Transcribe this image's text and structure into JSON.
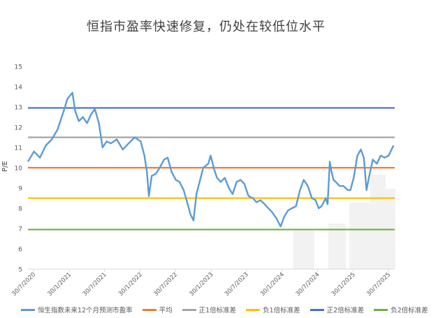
{
  "colors": {
    "pe": "#5b9bd5",
    "avg": "#ed7d31",
    "plus1": "#a5a5a5",
    "minus1": "#ffc000",
    "plus2": "#4472c4",
    "minus2": "#70ad47"
  },
  "chart_data": {
    "type": "line",
    "title": "恒指市盈率快速修复，仍处在较低位水平",
    "xlabel": "",
    "ylabel": "P/E",
    "ylim": [
      5,
      15
    ],
    "yticks": [
      5,
      6,
      7,
      8,
      9,
      10,
      11,
      12,
      13,
      14,
      15
    ],
    "x_range": [
      "2020-07-01",
      "2025-08-31"
    ],
    "xticks": [
      "30/7/2020",
      "30/1/2021",
      "30/7/2021",
      "30/1/2022",
      "30/7/2022",
      "30/1/2023",
      "30/7/2023",
      "30/1/2024",
      "30/7/2024",
      "30/1/2025",
      "30/7/2025"
    ],
    "xtick_dates": [
      "2020-07-30",
      "2021-01-30",
      "2021-07-30",
      "2022-01-30",
      "2022-07-30",
      "2023-01-30",
      "2023-07-30",
      "2024-01-30",
      "2024-07-30",
      "2025-01-30",
      "2025-07-30"
    ],
    "grid": false,
    "legend_position": "bottom",
    "series": [
      {
        "name": "恒生指数未来12个月预测市盈率",
        "x": [
          "2020-07-01",
          "2020-08-01",
          "2020-09-01",
          "2020-10-01",
          "2020-11-01",
          "2020-12-01",
          "2021-01-01",
          "2021-01-20",
          "2021-02-15",
          "2021-03-01",
          "2021-03-20",
          "2021-04-10",
          "2021-05-01",
          "2021-05-20",
          "2021-06-10",
          "2021-07-01",
          "2021-07-20",
          "2021-08-10",
          "2021-09-01",
          "2021-10-01",
          "2021-11-01",
          "2021-12-01",
          "2022-01-01",
          "2022-02-01",
          "2022-02-20",
          "2022-03-05",
          "2022-03-15",
          "2022-03-30",
          "2022-04-20",
          "2022-05-10",
          "2022-06-01",
          "2022-06-20",
          "2022-07-10",
          "2022-08-01",
          "2022-08-20",
          "2022-09-10",
          "2022-10-01",
          "2022-10-15",
          "2022-10-31",
          "2022-11-15",
          "2022-12-01",
          "2022-12-20",
          "2023-01-15",
          "2023-01-27",
          "2023-02-15",
          "2023-03-01",
          "2023-03-20",
          "2023-04-10",
          "2023-05-01",
          "2023-05-20",
          "2023-06-10",
          "2023-06-30",
          "2023-07-20",
          "2023-08-10",
          "2023-09-01",
          "2023-09-20",
          "2023-10-10",
          "2023-11-01",
          "2023-11-20",
          "2023-12-10",
          "2024-01-01",
          "2024-01-22",
          "2024-02-10",
          "2024-03-01",
          "2024-03-20",
          "2024-04-10",
          "2024-05-01",
          "2024-05-20",
          "2024-06-10",
          "2024-07-01",
          "2024-07-20",
          "2024-08-05",
          "2024-08-20",
          "2024-09-10",
          "2024-09-20",
          "2024-10-01",
          "2024-10-10",
          "2024-10-20",
          "2024-11-01",
          "2024-11-20",
          "2024-12-10",
          "2025-01-01",
          "2025-01-15",
          "2025-02-01",
          "2025-02-20",
          "2025-03-10",
          "2025-03-25",
          "2025-04-08",
          "2025-04-20",
          "2025-05-10",
          "2025-05-31",
          "2025-06-20",
          "2025-07-10",
          "2025-07-31",
          "2025-08-15",
          "2025-08-25"
        ],
        "values": [
          10.3,
          10.8,
          10.5,
          11.1,
          11.4,
          11.9,
          12.8,
          13.4,
          13.7,
          12.8,
          12.3,
          12.5,
          12.2,
          12.6,
          12.9,
          12.2,
          11.0,
          11.3,
          11.2,
          11.4,
          10.9,
          11.2,
          11.5,
          11.3,
          10.6,
          9.8,
          8.6,
          9.6,
          9.7,
          10.0,
          10.4,
          10.5,
          9.8,
          9.4,
          9.3,
          8.9,
          8.2,
          7.7,
          7.4,
          8.7,
          9.3,
          10.0,
          10.2,
          10.6,
          9.9,
          9.5,
          9.3,
          9.5,
          9.0,
          8.7,
          9.3,
          9.4,
          9.2,
          8.6,
          8.5,
          8.3,
          8.4,
          8.2,
          8.0,
          7.8,
          7.5,
          7.1,
          7.6,
          7.9,
          8.0,
          8.1,
          8.9,
          9.4,
          9.1,
          8.5,
          8.4,
          8.0,
          8.1,
          8.5,
          8.2,
          10.3,
          9.8,
          9.4,
          9.3,
          9.1,
          9.1,
          8.9,
          8.9,
          9.5,
          10.6,
          10.9,
          10.5,
          8.9,
          9.5,
          10.4,
          10.2,
          10.6,
          10.5,
          10.6,
          10.9,
          11.1
        ]
      },
      {
        "name": "平均",
        "constant": 10.0
      },
      {
        "name": "正1倍标准差",
        "constant": 11.5
      },
      {
        "name": "负1倍标准差",
        "constant": 8.5
      },
      {
        "name": "正2倍标准差",
        "constant": 12.95
      },
      {
        "name": "负2倍标准差",
        "constant": 6.95
      }
    ]
  }
}
